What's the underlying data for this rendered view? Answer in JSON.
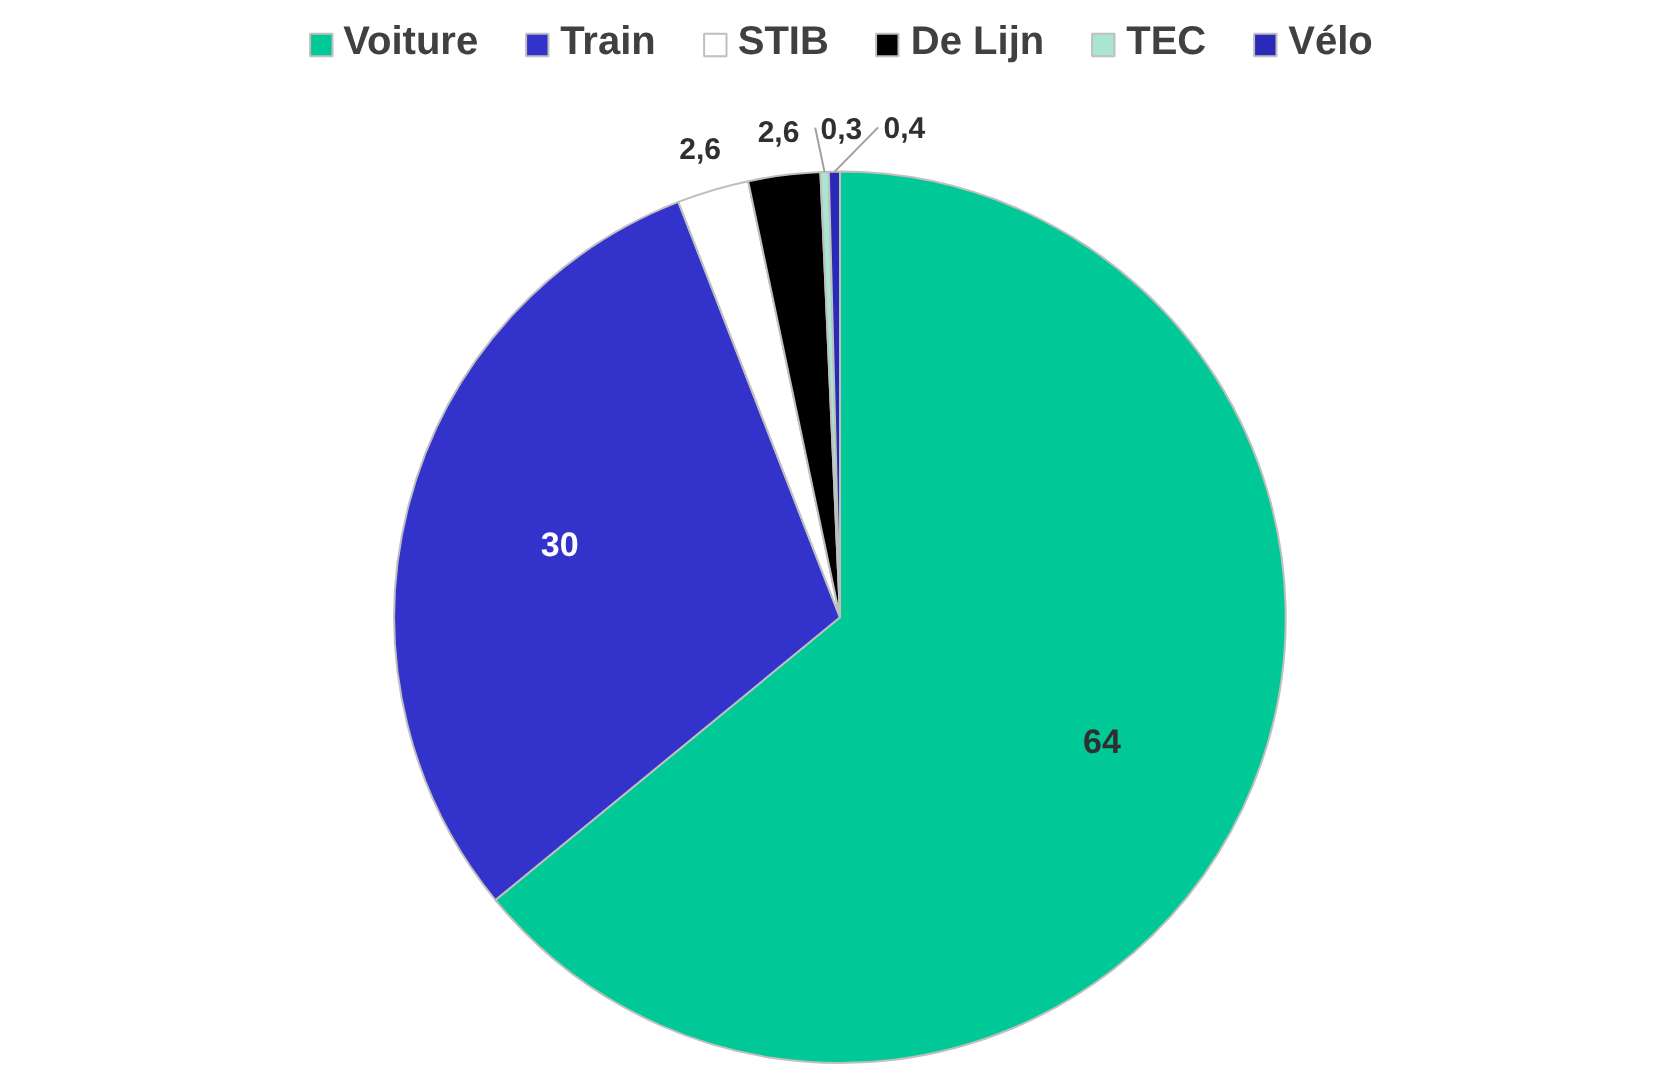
{
  "chart_data": {
    "type": "pie",
    "categories": [
      "Voiture",
      "Train",
      "STIB",
      "De Lijn",
      "TEC",
      "Vélo"
    ],
    "values": [
      64,
      30,
      2.6,
      2.6,
      0.3,
      0.4
    ],
    "value_labels": [
      "64",
      "30",
      "2,6",
      "2,6",
      "0,3",
      "0,4"
    ],
    "colors": [
      "#00c896",
      "#3333cc",
      "#ffffff",
      "#000000",
      "#a8e6cf",
      "#2a2ab8"
    ],
    "legend": "top"
  }
}
